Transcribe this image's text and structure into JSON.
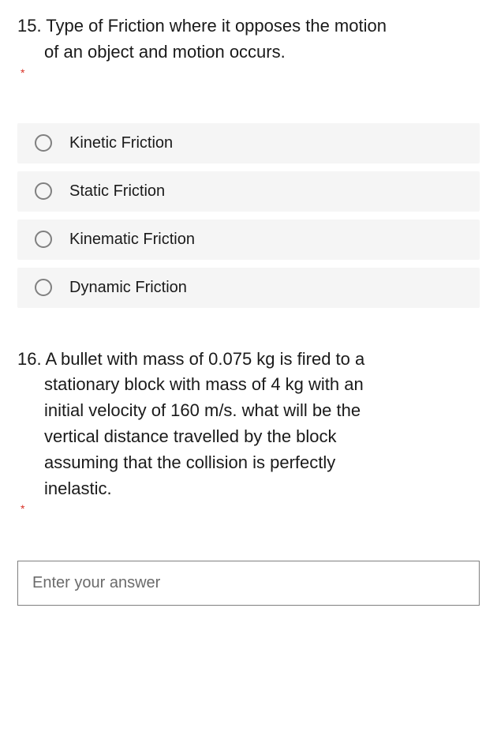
{
  "q15": {
    "number": "15.",
    "line1": "15. Type of Friction where it opposes the motion",
    "line2": "of an object and motion occurs.",
    "required": "*",
    "options": [
      {
        "label": "Kinetic Friction"
      },
      {
        "label": "Static Friction"
      },
      {
        "label": "Kinematic Friction"
      },
      {
        "label": "Dynamic Friction"
      }
    ],
    "option_bg": "#f5f5f5",
    "radio_border": "#808080"
  },
  "q16": {
    "line1": "16. A bullet with mass of 0.075 kg is fired to a",
    "line2": "stationary block with mass of 4 kg with an",
    "line3": "initial velocity of 160 m/s. what will be the",
    "line4": "vertical distance travelled by the block",
    "line5": "assuming that the collision is perfectly",
    "line6": "inelastic.",
    "required": "*",
    "answer_placeholder": "Enter your answer"
  },
  "colors": {
    "text": "#1a1a1a",
    "placeholder": "#6b6b6b",
    "required": "#d93025",
    "background": "#ffffff"
  }
}
